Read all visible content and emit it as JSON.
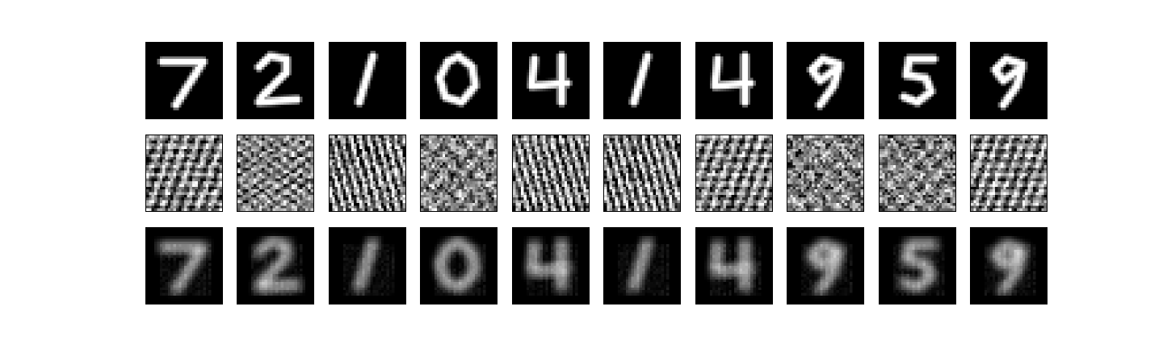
{
  "figure": {
    "rows": [
      {
        "name": "original-digits",
        "style": "digit"
      },
      {
        "name": "encoded-noise",
        "style": "noise"
      },
      {
        "name": "reconstructions",
        "style": "blur"
      }
    ],
    "digits": [
      {
        "label": "7",
        "noise_orientation": "hatch"
      },
      {
        "label": "2",
        "noise_orientation": "horizontal"
      },
      {
        "label": "1",
        "noise_orientation": "diagonal"
      },
      {
        "label": "0",
        "noise_orientation": "blotchy"
      },
      {
        "label": "4",
        "noise_orientation": "diagonal"
      },
      {
        "label": "1",
        "noise_orientation": "diagonal"
      },
      {
        "label": "4",
        "noise_orientation": "hatch"
      },
      {
        "label": "9",
        "noise_orientation": "blotchy"
      },
      {
        "label": "5",
        "noise_orientation": "blotchy"
      },
      {
        "label": "9",
        "noise_orientation": "hatch"
      }
    ],
    "colormap": "grayscale",
    "background": "#ffffff",
    "frame_color": "#000000"
  }
}
